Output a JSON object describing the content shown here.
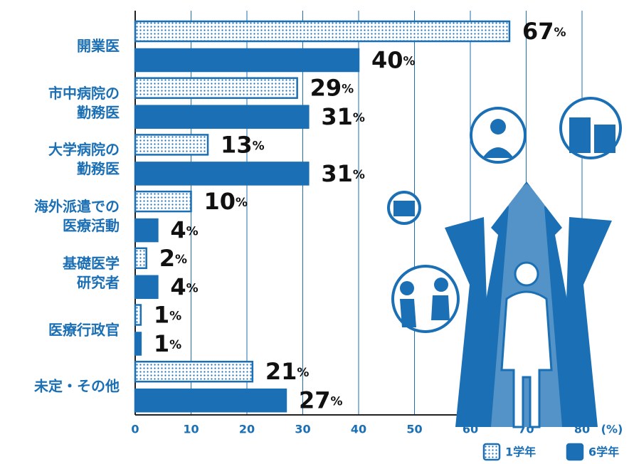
{
  "chart_data": {
    "type": "hbar",
    "categories": [
      "開業医",
      "市中病院の\n勤務医",
      "大学病院の\n勤務医",
      "海外派遣での\n医療活動",
      "基礎医学\n研究者",
      "医療行政官",
      "未定・その他"
    ],
    "series": [
      {
        "name": "1学年",
        "color": "#1a6fb5",
        "fill": "dotted",
        "values": [
          67,
          29,
          13,
          10,
          2,
          1,
          21
        ],
        "value_labels": [
          "67%",
          "29%",
          "13%",
          "10%",
          "2%",
          "1%",
          "21%"
        ]
      },
      {
        "name": "6学年",
        "color": "#1a6fb5",
        "fill": "solid",
        "values": [
          40,
          31,
          31,
          4,
          4,
          1,
          27
        ],
        "value_labels": [
          "40%",
          "31%",
          "31%",
          "4%",
          "4%",
          "1%",
          "27%"
        ]
      }
    ],
    "x_label": "(%)",
    "xlim": [
      0,
      80
    ],
    "xticks": [
      0,
      10,
      20,
      30,
      40,
      50,
      60,
      70,
      80
    ],
    "grid": true,
    "legend": "bottom-right"
  }
}
